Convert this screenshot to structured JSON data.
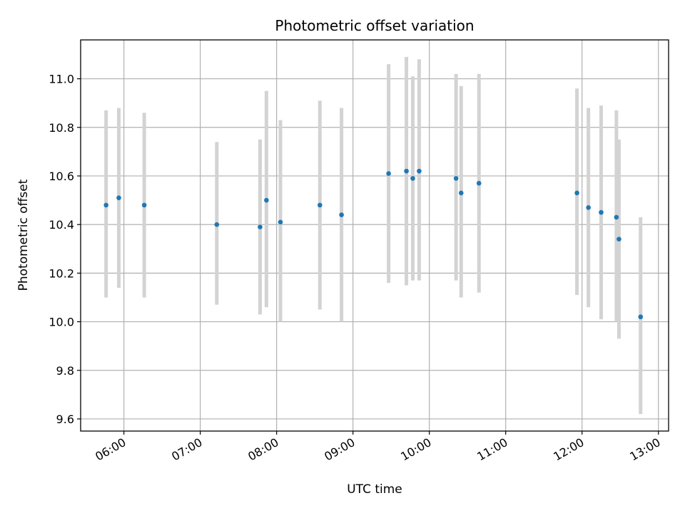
{
  "chart_data": {
    "type": "scatter",
    "title": "Photometric offset variation",
    "xlabel": "UTC time",
    "ylabel": "Photometric offset",
    "grid": true,
    "x_tick_labels": [
      "06:00",
      "07:00",
      "08:00",
      "09:00",
      "10:00",
      "11:00",
      "12:00",
      "13:00"
    ],
    "x_tick_hours": [
      6,
      7,
      8,
      9,
      10,
      11,
      12,
      13
    ],
    "xlim": [
      "05:26",
      "13:08"
    ],
    "y_ticks": [
      9.6,
      9.8,
      10.0,
      10.2,
      10.4,
      10.6,
      10.8,
      11.0
    ],
    "ylim": [
      9.55,
      11.16
    ],
    "point_color": "#1f77b4",
    "errorbar_color": "#d3d3d3",
    "points": [
      {
        "x": "05:46",
        "y": 10.48,
        "low": 10.1,
        "high": 10.87
      },
      {
        "x": "05:56",
        "y": 10.51,
        "low": 10.14,
        "high": 10.88
      },
      {
        "x": "06:16",
        "y": 10.48,
        "low": 10.1,
        "high": 10.86
      },
      {
        "x": "07:13",
        "y": 10.4,
        "low": 10.07,
        "high": 10.74
      },
      {
        "x": "07:47",
        "y": 10.39,
        "low": 10.03,
        "high": 10.75
      },
      {
        "x": "07:52",
        "y": 10.5,
        "low": 10.06,
        "high": 10.95
      },
      {
        "x": "08:03",
        "y": 10.41,
        "low": 10.0,
        "high": 10.83
      },
      {
        "x": "08:34",
        "y": 10.48,
        "low": 10.05,
        "high": 10.91
      },
      {
        "x": "08:51",
        "y": 10.44,
        "low": 10.0,
        "high": 10.88
      },
      {
        "x": "09:28",
        "y": 10.61,
        "low": 10.16,
        "high": 11.06
      },
      {
        "x": "09:42",
        "y": 10.62,
        "low": 10.15,
        "high": 11.09
      },
      {
        "x": "09:47",
        "y": 10.59,
        "low": 10.17,
        "high": 11.01
      },
      {
        "x": "09:52",
        "y": 10.62,
        "low": 10.17,
        "high": 11.08
      },
      {
        "x": "10:21",
        "y": 10.59,
        "low": 10.17,
        "high": 11.02
      },
      {
        "x": "10:25",
        "y": 10.53,
        "low": 10.1,
        "high": 10.97
      },
      {
        "x": "10:39",
        "y": 10.57,
        "low": 10.12,
        "high": 11.02
      },
      {
        "x": "11:56",
        "y": 10.53,
        "low": 10.11,
        "high": 10.96
      },
      {
        "x": "12:05",
        "y": 10.47,
        "low": 10.06,
        "high": 10.88
      },
      {
        "x": "12:15",
        "y": 10.45,
        "low": 10.01,
        "high": 10.89
      },
      {
        "x": "12:27",
        "y": 10.43,
        "low": 10.0,
        "high": 10.87
      },
      {
        "x": "12:29",
        "y": 10.34,
        "low": 9.93,
        "high": 10.75
      },
      {
        "x": "12:46",
        "y": 10.02,
        "low": 9.62,
        "high": 10.43
      }
    ]
  }
}
